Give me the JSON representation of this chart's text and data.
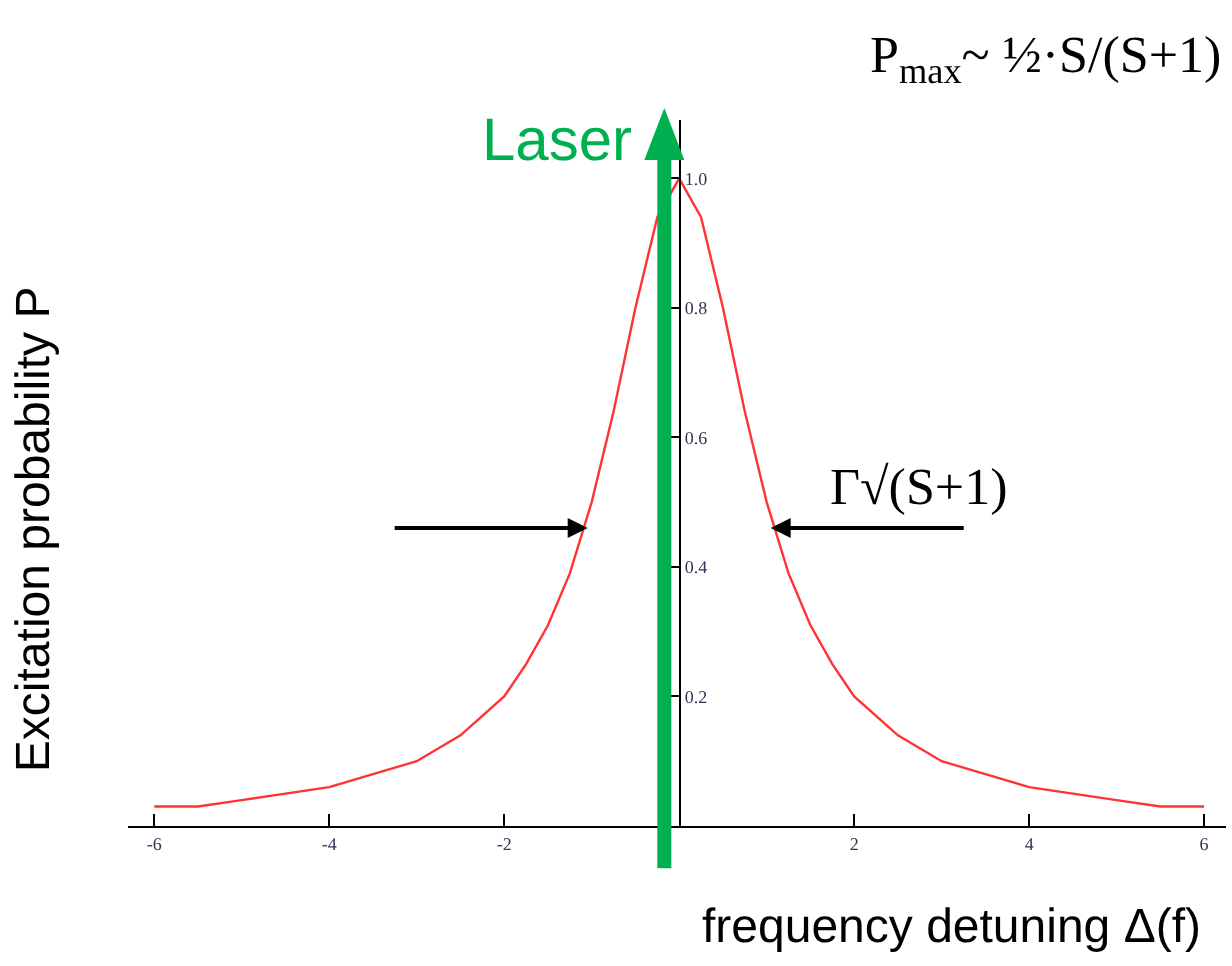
{
  "chart_data": {
    "type": "line",
    "xlabel": "frequency detuning Δ(f)",
    "ylabel": "Excitation probability P",
    "x": [
      -6,
      -5.5,
      -5,
      -4.5,
      -4,
      -3.5,
      -3,
      -2.5,
      -2,
      -1.75,
      -1.5,
      -1.25,
      -1,
      -0.75,
      -0.5,
      -0.25,
      0,
      0.25,
      0.5,
      0.75,
      1,
      1.25,
      1.5,
      1.75,
      2,
      2.5,
      3,
      3.5,
      4,
      4.5,
      5,
      5.5,
      6
    ],
    "series": [
      {
        "color": "#ff3333",
        "values": [
          0.03,
          0.03,
          0.04,
          0.05,
          0.06,
          0.08,
          0.1,
          0.14,
          0.2,
          0.25,
          0.31,
          0.39,
          0.5,
          0.64,
          0.8,
          0.94,
          1.0,
          0.94,
          0.8,
          0.64,
          0.5,
          0.39,
          0.31,
          0.25,
          0.2,
          0.14,
          0.1,
          0.08,
          0.06,
          0.05,
          0.04,
          0.03,
          0.03
        ]
      }
    ],
    "xlim": [
      -6.3,
      6.25
    ],
    "ylim": [
      0,
      1.09
    ],
    "xticks": [
      -6,
      -4,
      -2,
      2,
      4,
      6
    ],
    "yticks": [
      0.2,
      0.4,
      0.6,
      0.8,
      {
        "value": 1,
        "label": "1.0"
      }
    ],
    "ref_lines": [
      {
        "axis": "x",
        "value": -0.17,
        "label": "Laser",
        "color": "#00b050"
      }
    ],
    "annotations": [
      "P$_{max}$~ ½·S/(S+1)",
      {
        "text": "Γ√(S+1)",
        "x": 1.0,
        "y": 0.46
      }
    ],
    "grid": false,
    "marker": "none",
    "line_style": "solid"
  }
}
